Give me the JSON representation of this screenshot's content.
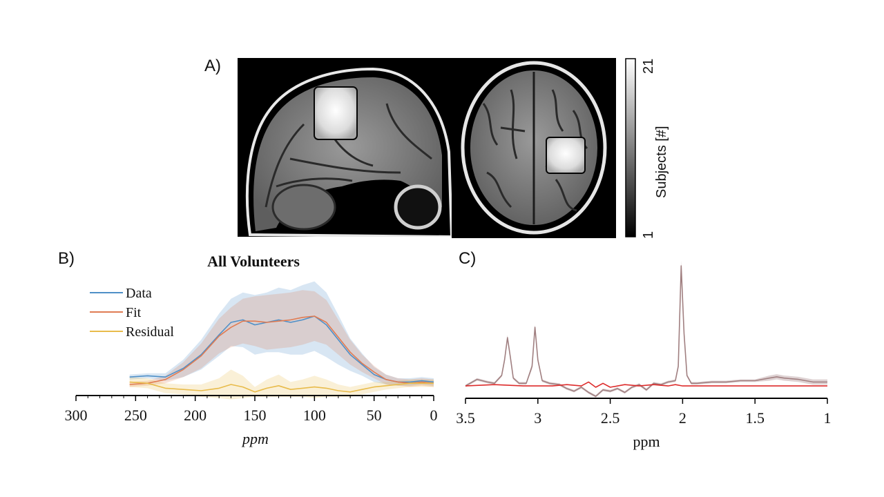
{
  "panels": {
    "a": {
      "label": "A)"
    },
    "b": {
      "label": "B)"
    },
    "c": {
      "label": "C)"
    }
  },
  "colorbar": {
    "title": "Subjects [#]",
    "max_label": "21",
    "min_label": "1"
  },
  "chart_data": [
    {
      "id": "B",
      "type": "line",
      "title": "All Volunteers",
      "xlabel": "ppm",
      "ylabel": "",
      "xlim": [
        300,
        0
      ],
      "ylim": [
        0,
        1
      ],
      "xticks": [
        "300",
        "250",
        "200",
        "150",
        "100",
        "50",
        "0"
      ],
      "legend": {
        "placement": "top-left",
        "entries": [
          "Data",
          "Fit",
          "Residual"
        ]
      },
      "colors": {
        "Data": "#4e8fc7",
        "Fit": "#e07b52",
        "Residual": "#e8bb4a"
      },
      "series": [
        {
          "name": "Data",
          "x": [
            255,
            240,
            225,
            210,
            195,
            180,
            170,
            160,
            150,
            140,
            130,
            120,
            110,
            100,
            90,
            80,
            70,
            60,
            50,
            40,
            30,
            20,
            10,
            0
          ],
          "values": [
            0.16,
            0.17,
            0.16,
            0.23,
            0.34,
            0.5,
            0.6,
            0.62,
            0.58,
            0.6,
            0.62,
            0.6,
            0.62,
            0.65,
            0.58,
            0.46,
            0.34,
            0.26,
            0.18,
            0.14,
            0.12,
            0.12,
            0.13,
            0.12
          ],
          "band_width": [
            0.02,
            0.02,
            0.03,
            0.07,
            0.12,
            0.17,
            0.19,
            0.22,
            0.24,
            0.24,
            0.26,
            0.26,
            0.28,
            0.28,
            0.26,
            0.2,
            0.13,
            0.09,
            0.06,
            0.04,
            0.03,
            0.03,
            0.03,
            0.03
          ]
        },
        {
          "name": "Fit",
          "x": [
            255,
            240,
            225,
            210,
            195,
            180,
            170,
            160,
            150,
            140,
            130,
            120,
            110,
            100,
            90,
            80,
            70,
            60,
            50,
            40,
            30,
            20,
            10,
            0
          ],
          "values": [
            0.1,
            0.11,
            0.14,
            0.22,
            0.33,
            0.49,
            0.56,
            0.61,
            0.61,
            0.6,
            0.61,
            0.62,
            0.64,
            0.65,
            0.6,
            0.48,
            0.36,
            0.27,
            0.2,
            0.14,
            0.12,
            0.11,
            0.12,
            0.11
          ],
          "band_width": [
            0.02,
            0.02,
            0.03,
            0.06,
            0.1,
            0.14,
            0.16,
            0.18,
            0.2,
            0.22,
            0.22,
            0.22,
            0.22,
            0.2,
            0.18,
            0.14,
            0.1,
            0.07,
            0.05,
            0.04,
            0.03,
            0.03,
            0.03,
            0.03
          ]
        },
        {
          "name": "Residual",
          "x": [
            255,
            240,
            225,
            210,
            195,
            180,
            170,
            160,
            150,
            140,
            130,
            120,
            110,
            100,
            90,
            80,
            70,
            60,
            50,
            40,
            30,
            20,
            10,
            0
          ],
          "values": [
            0.12,
            0.11,
            0.07,
            0.06,
            0.05,
            0.07,
            0.1,
            0.08,
            0.04,
            0.07,
            0.09,
            0.06,
            0.07,
            0.08,
            0.07,
            0.05,
            0.04,
            0.06,
            0.08,
            0.09,
            0.1,
            0.11,
            0.11,
            0.11
          ],
          "band_width": [
            0.04,
            0.04,
            0.04,
            0.04,
            0.05,
            0.08,
            0.12,
            0.09,
            0.04,
            0.07,
            0.09,
            0.06,
            0.07,
            0.09,
            0.07,
            0.05,
            0.04,
            0.04,
            0.04,
            0.03,
            0.03,
            0.03,
            0.03,
            0.03
          ]
        }
      ]
    },
    {
      "id": "C",
      "type": "line",
      "title": "",
      "xlabel": "ppm",
      "ylabel": "",
      "xlim": [
        3.5,
        1.0
      ],
      "ylim": [
        -0.1,
        1.0
      ],
      "xticks": [
        "3.5",
        "3",
        "2.5",
        "2",
        "1.5",
        "1"
      ],
      "colors": {
        "spectrum": "#a07f80",
        "residual": "#dd2a2a"
      },
      "series": [
        {
          "name": "spectrum",
          "x": [
            3.5,
            3.42,
            3.35,
            3.3,
            3.25,
            3.23,
            3.21,
            3.19,
            3.17,
            3.13,
            3.08,
            3.04,
            3.02,
            3.0,
            2.97,
            2.92,
            2.85,
            2.8,
            2.75,
            2.7,
            2.65,
            2.6,
            2.55,
            2.5,
            2.45,
            2.4,
            2.35,
            2.3,
            2.25,
            2.2,
            2.15,
            2.1,
            2.05,
            2.03,
            2.01,
            1.99,
            1.97,
            1.94,
            1.9,
            1.8,
            1.7,
            1.6,
            1.5,
            1.4,
            1.35,
            1.3,
            1.2,
            1.1,
            1.0
          ],
          "values": [
            0.0,
            0.05,
            0.03,
            0.02,
            0.08,
            0.2,
            0.37,
            0.22,
            0.06,
            0.02,
            0.02,
            0.15,
            0.45,
            0.2,
            0.04,
            0.02,
            0.01,
            -0.02,
            -0.04,
            -0.01,
            -0.05,
            -0.08,
            -0.03,
            -0.04,
            -0.02,
            -0.05,
            -0.01,
            0.01,
            -0.03,
            0.02,
            0.01,
            0.03,
            0.04,
            0.15,
            0.92,
            0.4,
            0.08,
            0.02,
            0.02,
            0.03,
            0.03,
            0.04,
            0.04,
            0.06,
            0.07,
            0.06,
            0.05,
            0.03,
            0.03
          ],
          "band_width": [
            0.01,
            0.01,
            0.01,
            0.01,
            0.01,
            0.02,
            0.02,
            0.02,
            0.01,
            0.01,
            0.01,
            0.02,
            0.02,
            0.02,
            0.01,
            0.01,
            0.01,
            0.01,
            0.01,
            0.01,
            0.01,
            0.01,
            0.01,
            0.01,
            0.01,
            0.01,
            0.01,
            0.01,
            0.01,
            0.01,
            0.01,
            0.01,
            0.01,
            0.02,
            0.04,
            0.02,
            0.01,
            0.01,
            0.01,
            0.01,
            0.01,
            0.01,
            0.01,
            0.02,
            0.02,
            0.02,
            0.02,
            0.02,
            0.02
          ]
        },
        {
          "name": "residual",
          "x": [
            3.5,
            3.3,
            3.1,
            2.9,
            2.8,
            2.7,
            2.65,
            2.6,
            2.55,
            2.5,
            2.4,
            2.3,
            2.2,
            2.1,
            2.05,
            2.0,
            1.95,
            1.8,
            1.6,
            1.4,
            1.2,
            1.0
          ],
          "values": [
            0.0,
            0.01,
            0.0,
            0.0,
            0.01,
            0.0,
            0.03,
            -0.01,
            0.02,
            -0.01,
            0.01,
            0.0,
            0.01,
            0.0,
            0.01,
            0.0,
            0.0,
            0.0,
            0.0,
            0.0,
            0.0,
            0.0
          ]
        }
      ]
    }
  ]
}
